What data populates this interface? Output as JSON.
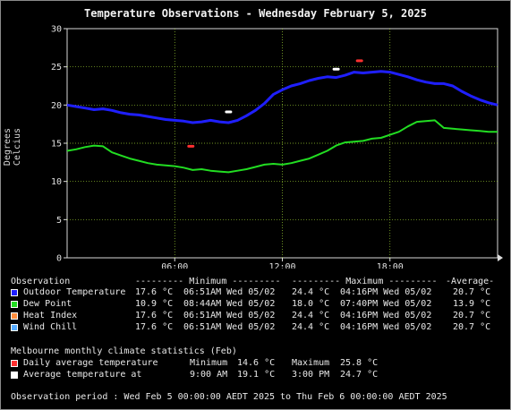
{
  "title": "Temperature Observations - Wednesday February 5, 2025",
  "colors": {
    "background": "#000000",
    "grid": "#9acd32",
    "outdoor": "#1f1fff",
    "dewpoint": "#22dd22",
    "heat_index": "#ff8c3c",
    "wind_chill": "#55aaff",
    "avg_daily": "#ff3030",
    "avg_at": "#ffffff"
  },
  "chart_data": {
    "type": "line",
    "title": "Temperature Observations - Wednesday February 5, 2025",
    "ylabel": "Degrees Celcius",
    "xlabel": "",
    "ylim": [
      0,
      30
    ],
    "xlim_hours": [
      0,
      24
    ],
    "yticks": [
      "0",
      "5",
      "10",
      "15",
      "20",
      "25",
      "30"
    ],
    "xticks": [
      {
        "hour": 6,
        "label": "06:00"
      },
      {
        "hour": 12,
        "label": "12:00"
      },
      {
        "hour": 18,
        "label": "18:00"
      }
    ],
    "grid": true,
    "series": [
      {
        "name": "Outdoor Temperature",
        "color": "#1f1fff",
        "x": [
          0,
          0.5,
          1,
          1.5,
          2,
          2.5,
          3,
          3.5,
          4,
          4.5,
          5,
          5.5,
          6,
          6.5,
          7,
          7.5,
          8,
          8.5,
          9,
          9.5,
          10,
          10.5,
          11,
          11.5,
          12,
          12.5,
          13,
          13.5,
          14,
          14.5,
          15,
          15.5,
          16,
          16.5,
          17,
          17.5,
          18,
          18.5,
          19,
          19.5,
          20,
          20.5,
          21,
          21.5,
          22,
          22.5,
          23,
          23.5,
          24
        ],
        "y": [
          20.0,
          19.8,
          19.6,
          19.4,
          19.5,
          19.3,
          19.0,
          18.8,
          18.7,
          18.5,
          18.3,
          18.1,
          18.0,
          17.9,
          17.7,
          17.8,
          18.0,
          17.8,
          17.7,
          18.0,
          18.6,
          19.3,
          20.2,
          21.4,
          22.0,
          22.5,
          22.8,
          23.2,
          23.5,
          23.7,
          23.6,
          23.9,
          24.3,
          24.2,
          24.3,
          24.4,
          24.3,
          24.0,
          23.7,
          23.3,
          23.0,
          22.8,
          22.8,
          22.5,
          21.8,
          21.2,
          20.7,
          20.3,
          20.0
        ]
      },
      {
        "name": "Dew Point",
        "color": "#22dd22",
        "x": [
          0,
          0.5,
          1,
          1.5,
          2,
          2.5,
          3,
          3.5,
          4,
          4.5,
          5,
          5.5,
          6,
          6.5,
          7,
          7.5,
          8,
          8.5,
          9,
          9.5,
          10,
          10.5,
          11,
          11.5,
          12,
          12.5,
          13,
          13.5,
          14,
          14.5,
          15,
          15.5,
          16,
          16.5,
          17,
          17.5,
          18,
          18.5,
          19,
          19.5,
          20,
          20.5,
          21,
          21.5,
          22,
          22.5,
          23,
          23.5,
          24
        ],
        "y": [
          14.0,
          14.2,
          14.5,
          14.7,
          14.6,
          13.8,
          13.4,
          13.0,
          12.7,
          12.4,
          12.2,
          12.1,
          12.0,
          11.8,
          11.5,
          11.6,
          11.4,
          11.3,
          11.2,
          11.4,
          11.6,
          11.9,
          12.2,
          12.3,
          12.2,
          12.4,
          12.7,
          13.0,
          13.5,
          14.0,
          14.7,
          15.1,
          15.2,
          15.3,
          15.6,
          15.7,
          16.1,
          16.5,
          17.2,
          17.8,
          17.9,
          18.0,
          17.0,
          16.9,
          16.8,
          16.7,
          16.6,
          16.5,
          16.5
        ]
      },
      {
        "name": "Daily average temperature",
        "color": "#ff3030",
        "markers": [
          {
            "x": 6.9,
            "y": 14.6
          },
          {
            "x": 16.3,
            "y": 25.8
          }
        ]
      },
      {
        "name": "Average temperature at",
        "color": "#ffffff",
        "markers": [
          {
            "x": 9.0,
            "y": 19.1
          },
          {
            "x": 15.0,
            "y": 24.7
          }
        ]
      }
    ]
  },
  "legend": {
    "header": [
      "Observation",
      "--------- Minimum ---------",
      "--------- Maximum ---------",
      "-Average-"
    ],
    "rows": [
      {
        "name": "Outdoor Temperature",
        "min_val": "17.6 °C",
        "min_time": "06:51AM Wed 05/02",
        "max_val": "24.4 °C",
        "max_time": "04:16PM Wed 05/02",
        "avg": "20.7 °C",
        "color": "#1f1fff"
      },
      {
        "name": "Dew Point",
        "min_val": "10.9 °C",
        "min_time": "08:44AM Wed 05/02",
        "max_val": "18.0 °C",
        "max_time": "07:40PM Wed 05/02",
        "avg": "13.9 °C",
        "color": "#22dd22"
      },
      {
        "name": "Heat Index",
        "min_val": "17.6 °C",
        "min_time": "06:51AM Wed 05/02",
        "max_val": "24.4 °C",
        "max_time": "04:16PM Wed 05/02",
        "avg": "20.7 °C",
        "color": "#ff8c3c"
      },
      {
        "name": "Wind Chill",
        "min_val": "17.6 °C",
        "min_time": "06:51AM Wed 05/02",
        "max_val": "24.4 °C",
        "max_time": "04:16PM Wed 05/02",
        "avg": "20.7 °C",
        "color": "#55aaff"
      }
    ]
  },
  "climate": {
    "header": "Melbourne monthly climate statistics (Feb)",
    "daily_label": "Daily average temperature",
    "daily_min_label": "Minimum",
    "daily_min_val": "14.6 °C",
    "daily_max_label": "Maximum",
    "daily_max_val": "25.8 °C",
    "at_label": "Average temperature at",
    "at_time1": "9:00 AM",
    "at_val1": "19.1 °C",
    "at_time2": "3:00 PM",
    "at_val2": "24.7 °C"
  },
  "period": "Observation period : Wed Feb 5 00:00:00 AEDT 2025 to Thu Feb 6 00:00:00 AEDT 2025"
}
